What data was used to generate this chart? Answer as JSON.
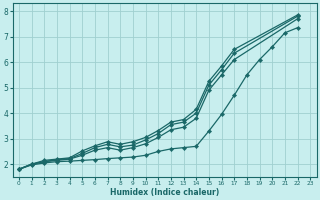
{
  "xlabel": "Humidex (Indice chaleur)",
  "bg_color": "#c8eeee",
  "grid_color": "#a0d0d0",
  "line_color": "#1a6868",
  "xlim": [
    -0.5,
    23.5
  ],
  "ylim": [
    1.5,
    8.3
  ],
  "xticks": [
    0,
    1,
    2,
    3,
    4,
    5,
    6,
    7,
    8,
    9,
    10,
    11,
    12,
    13,
    14,
    15,
    16,
    17,
    18,
    19,
    20,
    21,
    22,
    23
  ],
  "yticks": [
    2,
    3,
    4,
    5,
    6,
    7,
    8
  ],
  "series_x": [
    [
      0,
      1,
      2,
      3,
      4,
      5,
      6,
      7,
      8,
      9,
      10,
      11,
      12,
      13,
      14,
      15,
      16,
      17,
      18,
      19,
      20,
      21,
      22
    ],
    [
      0,
      1,
      2,
      3,
      4,
      5,
      6,
      7,
      8,
      9,
      10,
      11,
      12,
      13,
      14,
      15,
      16,
      17,
      22
    ],
    [
      0,
      1,
      2,
      3,
      4,
      5,
      6,
      7,
      8,
      9,
      10,
      11,
      12,
      13,
      14,
      15,
      16,
      17,
      22
    ],
    [
      0,
      1,
      2,
      3,
      4,
      5,
      6,
      7,
      8,
      9,
      10,
      11,
      12,
      13,
      14,
      15,
      16,
      17,
      22
    ]
  ],
  "series_y": [
    [
      1.8,
      1.97,
      2.05,
      2.1,
      2.12,
      2.15,
      2.18,
      2.22,
      2.25,
      2.28,
      2.35,
      2.5,
      2.6,
      2.65,
      2.7,
      3.3,
      3.95,
      4.7,
      5.5,
      6.1,
      6.6,
      7.15,
      7.35
    ],
    [
      1.8,
      2.0,
      2.1,
      2.15,
      2.2,
      2.35,
      2.55,
      2.65,
      2.55,
      2.65,
      2.8,
      3.05,
      3.35,
      3.45,
      3.8,
      4.9,
      5.5,
      6.1,
      7.7
    ],
    [
      1.8,
      2.0,
      2.1,
      2.18,
      2.22,
      2.42,
      2.65,
      2.78,
      2.68,
      2.75,
      2.95,
      3.2,
      3.55,
      3.65,
      4.0,
      5.1,
      5.7,
      6.35,
      7.8
    ],
    [
      1.8,
      2.0,
      2.15,
      2.2,
      2.25,
      2.52,
      2.72,
      2.88,
      2.78,
      2.88,
      3.05,
      3.32,
      3.65,
      3.75,
      4.15,
      5.25,
      5.85,
      6.5,
      7.85
    ]
  ]
}
